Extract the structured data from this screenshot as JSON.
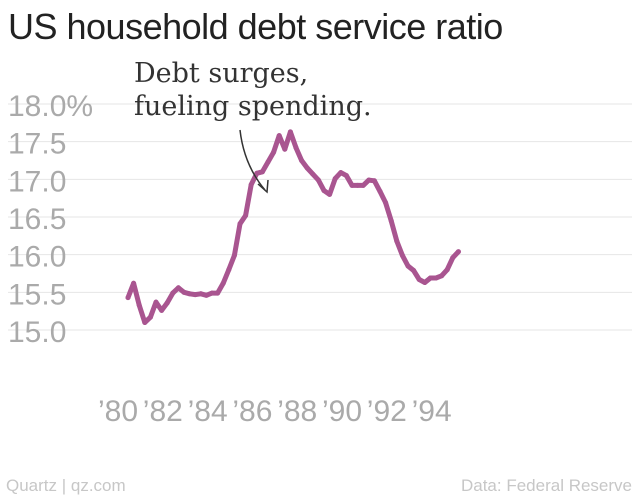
{
  "title": "US household debt service ratio",
  "annotation": {
    "line1": "Debt surges,",
    "line2": "fueling spending."
  },
  "footer": {
    "source_left": "Quartz | qz.com",
    "source_right": "Data: Federal Reserve"
  },
  "colors": {
    "line": "#a95590",
    "grid": "#e6e6e6",
    "tick": "#aaaaaa",
    "title": "#222222"
  },
  "chart_data": {
    "type": "line",
    "title": "US household debt service ratio",
    "xlabel": "",
    "ylabel": "",
    "ylim": [
      15.0,
      18.0
    ],
    "xlim": [
      1980,
      1995
    ],
    "grid": true,
    "y_ticks": [
      {
        "value": 18.0,
        "label": "18.0%"
      },
      {
        "value": 17.5,
        "label": "17.5"
      },
      {
        "value": 17.0,
        "label": "17.0"
      },
      {
        "value": 16.5,
        "label": "16.5"
      },
      {
        "value": 16.0,
        "label": "16.0"
      },
      {
        "value": 15.5,
        "label": "15.5"
      },
      {
        "value": 15.0,
        "label": "15.0"
      }
    ],
    "x_ticks": [
      {
        "value": 1980,
        "label": "’80"
      },
      {
        "value": 1982,
        "label": "’82"
      },
      {
        "value": 1984,
        "label": "’84"
      },
      {
        "value": 1986,
        "label": "’86"
      },
      {
        "value": 1988,
        "label": "’88"
      },
      {
        "value": 1990,
        "label": "’90"
      },
      {
        "value": 1992,
        "label": "’92"
      },
      {
        "value": 1994,
        "label": "’94"
      }
    ],
    "series": [
      {
        "points": [
          [
            1980.0,
            15.43
          ],
          [
            1980.25,
            15.62
          ],
          [
            1980.5,
            15.33
          ],
          [
            1980.75,
            15.1
          ],
          [
            1981.0,
            15.17
          ],
          [
            1981.25,
            15.37
          ],
          [
            1981.5,
            15.26
          ],
          [
            1981.75,
            15.36
          ],
          [
            1982.0,
            15.49
          ],
          [
            1982.25,
            15.56
          ],
          [
            1982.5,
            15.5
          ],
          [
            1982.75,
            15.48
          ],
          [
            1983.0,
            15.47
          ],
          [
            1983.25,
            15.48
          ],
          [
            1983.5,
            15.46
          ],
          [
            1983.75,
            15.49
          ],
          [
            1984.0,
            15.49
          ],
          [
            1984.25,
            15.62
          ],
          [
            1984.5,
            15.8
          ],
          [
            1984.75,
            15.99
          ],
          [
            1985.0,
            16.41
          ],
          [
            1985.25,
            16.52
          ],
          [
            1985.5,
            16.93
          ],
          [
            1985.75,
            17.08
          ],
          [
            1986.0,
            17.1
          ],
          [
            1986.25,
            17.23
          ],
          [
            1986.5,
            17.36
          ],
          [
            1986.75,
            17.58
          ],
          [
            1987.0,
            17.4
          ],
          [
            1987.25,
            17.63
          ],
          [
            1987.5,
            17.42
          ],
          [
            1987.75,
            17.25
          ],
          [
            1988.0,
            17.15
          ],
          [
            1988.25,
            17.07
          ],
          [
            1988.5,
            16.99
          ],
          [
            1988.75,
            16.85
          ],
          [
            1989.0,
            16.8
          ],
          [
            1989.25,
            17.01
          ],
          [
            1989.5,
            17.09
          ],
          [
            1989.75,
            17.05
          ],
          [
            1990.0,
            16.92
          ],
          [
            1990.25,
            16.92
          ],
          [
            1990.5,
            16.92
          ],
          [
            1990.75,
            16.99
          ],
          [
            1991.0,
            16.98
          ],
          [
            1991.25,
            16.84
          ],
          [
            1991.5,
            16.69
          ],
          [
            1991.75,
            16.45
          ],
          [
            1992.0,
            16.18
          ],
          [
            1992.25,
            15.99
          ],
          [
            1992.5,
            15.85
          ],
          [
            1992.75,
            15.79
          ],
          [
            1993.0,
            15.67
          ],
          [
            1993.25,
            15.63
          ],
          [
            1993.5,
            15.69
          ],
          [
            1993.75,
            15.69
          ],
          [
            1994.0,
            15.72
          ],
          [
            1994.25,
            15.8
          ],
          [
            1994.5,
            15.96
          ],
          [
            1994.75,
            16.04
          ]
        ]
      }
    ]
  }
}
